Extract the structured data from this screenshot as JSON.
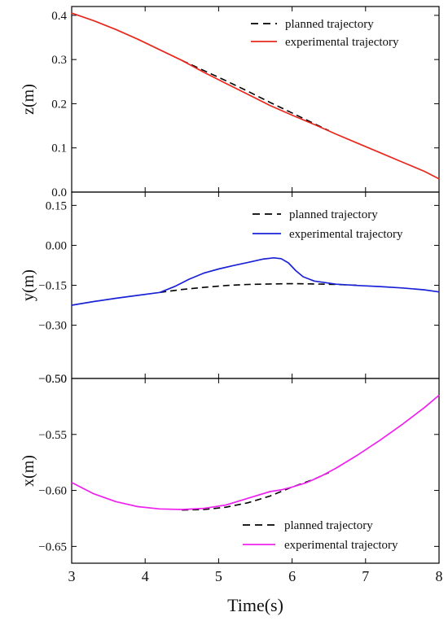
{
  "chart_data": [
    {
      "type": "line",
      "ylabel": "z(m)",
      "xlim": [
        3,
        8
      ],
      "ylim": [
        0.0,
        0.42
      ],
      "yticks": [
        0.0,
        0.1,
        0.2,
        0.3,
        0.4
      ],
      "ytick_labels": [
        "0.0",
        "0.1",
        "0.2",
        "0.3",
        "0.4"
      ],
      "legend_position": "top-right",
      "series": [
        {
          "name": "planned trajectory",
          "style": "dashed",
          "color": "#000000",
          "x": [
            4.5,
            4.8,
            5.1,
            5.4,
            5.7,
            6.0,
            6.3,
            6.5
          ],
          "y": [
            0.298,
            0.275,
            0.252,
            0.228,
            0.203,
            0.179,
            0.155,
            0.139
          ]
        },
        {
          "name": "experimental trajectory",
          "style": "solid",
          "color": "#e8281c",
          "x": [
            3.0,
            3.3,
            3.6,
            3.9,
            4.2,
            4.5,
            4.8,
            5.1,
            5.4,
            5.7,
            6.0,
            6.3,
            6.6,
            6.9,
            7.2,
            7.5,
            7.8,
            8.0
          ],
          "y": [
            0.405,
            0.388,
            0.368,
            0.346,
            0.322,
            0.298,
            0.271,
            0.246,
            0.221,
            0.196,
            0.174,
            0.153,
            0.131,
            0.11,
            0.089,
            0.068,
            0.047,
            0.03
          ]
        }
      ]
    },
    {
      "type": "line",
      "ylabel": "y(m)",
      "xlim": [
        3,
        8
      ],
      "ylim": [
        -0.5,
        0.2
      ],
      "yticks": [
        -0.5,
        -0.3,
        -0.15,
        0.0,
        0.15
      ],
      "ytick_labels": [
        "−0.50",
        "−0.30",
        "−0.15",
        "0.00",
        "0.15"
      ],
      "legend_position": "top-right",
      "series": [
        {
          "name": "planned trajectory",
          "style": "dashed",
          "color": "#000000",
          "x": [
            4.2,
            4.5,
            4.8,
            5.1,
            5.4,
            5.7,
            6.0,
            6.3,
            6.6,
            6.9
          ],
          "y": [
            -0.177,
            -0.166,
            -0.158,
            -0.151,
            -0.147,
            -0.145,
            -0.144,
            -0.145,
            -0.147,
            -0.15
          ]
        },
        {
          "name": "experimental trajectory",
          "style": "solid",
          "color": "#1a22d6",
          "x": [
            3.0,
            3.3,
            3.6,
            3.9,
            4.2,
            4.4,
            4.6,
            4.8,
            5.0,
            5.2,
            5.4,
            5.6,
            5.75,
            5.85,
            5.95,
            6.05,
            6.15,
            6.3,
            6.6,
            6.9,
            7.2,
            7.5,
            7.8,
            8.0
          ],
          "y": [
            -0.225,
            -0.211,
            -0.199,
            -0.188,
            -0.177,
            -0.155,
            -0.127,
            -0.104,
            -0.089,
            -0.076,
            -0.064,
            -0.052,
            -0.047,
            -0.05,
            -0.066,
            -0.095,
            -0.118,
            -0.134,
            -0.146,
            -0.151,
            -0.155,
            -0.16,
            -0.167,
            -0.175
          ]
        }
      ]
    },
    {
      "type": "line",
      "ylabel": "x(m)",
      "xlabel": "Time(s)",
      "xlim": [
        3,
        8
      ],
      "ylim": [
        -0.665,
        -0.5
      ],
      "yticks": [
        -0.65,
        -0.6,
        -0.55,
        -0.5
      ],
      "ytick_labels": [
        "−0.65",
        "−0.60",
        "−0.55",
        "−0.50"
      ],
      "xticks": [
        3,
        4,
        5,
        6,
        7,
        8
      ],
      "xtick_labels": [
        "3",
        "4",
        "5",
        "6",
        "7",
        "8"
      ],
      "legend_position": "bottom-right",
      "series": [
        {
          "name": "planned trajectory",
          "style": "dashed",
          "color": "#000000",
          "x": [
            4.5,
            4.8,
            5.1,
            5.4,
            5.7,
            6.0,
            6.3,
            6.5
          ],
          "y": [
            -0.6175,
            -0.617,
            -0.615,
            -0.611,
            -0.605,
            -0.597,
            -0.59,
            -0.584
          ]
        },
        {
          "name": "experimental trajectory",
          "style": "solid",
          "color": "#ee22ee",
          "x": [
            3.0,
            3.3,
            3.6,
            3.9,
            4.2,
            4.5,
            4.8,
            5.1,
            5.4,
            5.7,
            5.85,
            6.0,
            6.2,
            6.4,
            6.6,
            6.9,
            7.2,
            7.5,
            7.8,
            8.0
          ],
          "y": [
            -0.593,
            -0.603,
            -0.61,
            -0.6145,
            -0.6165,
            -0.617,
            -0.616,
            -0.613,
            -0.607,
            -0.601,
            -0.5995,
            -0.597,
            -0.593,
            -0.587,
            -0.58,
            -0.568,
            -0.555,
            -0.541,
            -0.526,
            -0.515
          ]
        }
      ]
    }
  ]
}
